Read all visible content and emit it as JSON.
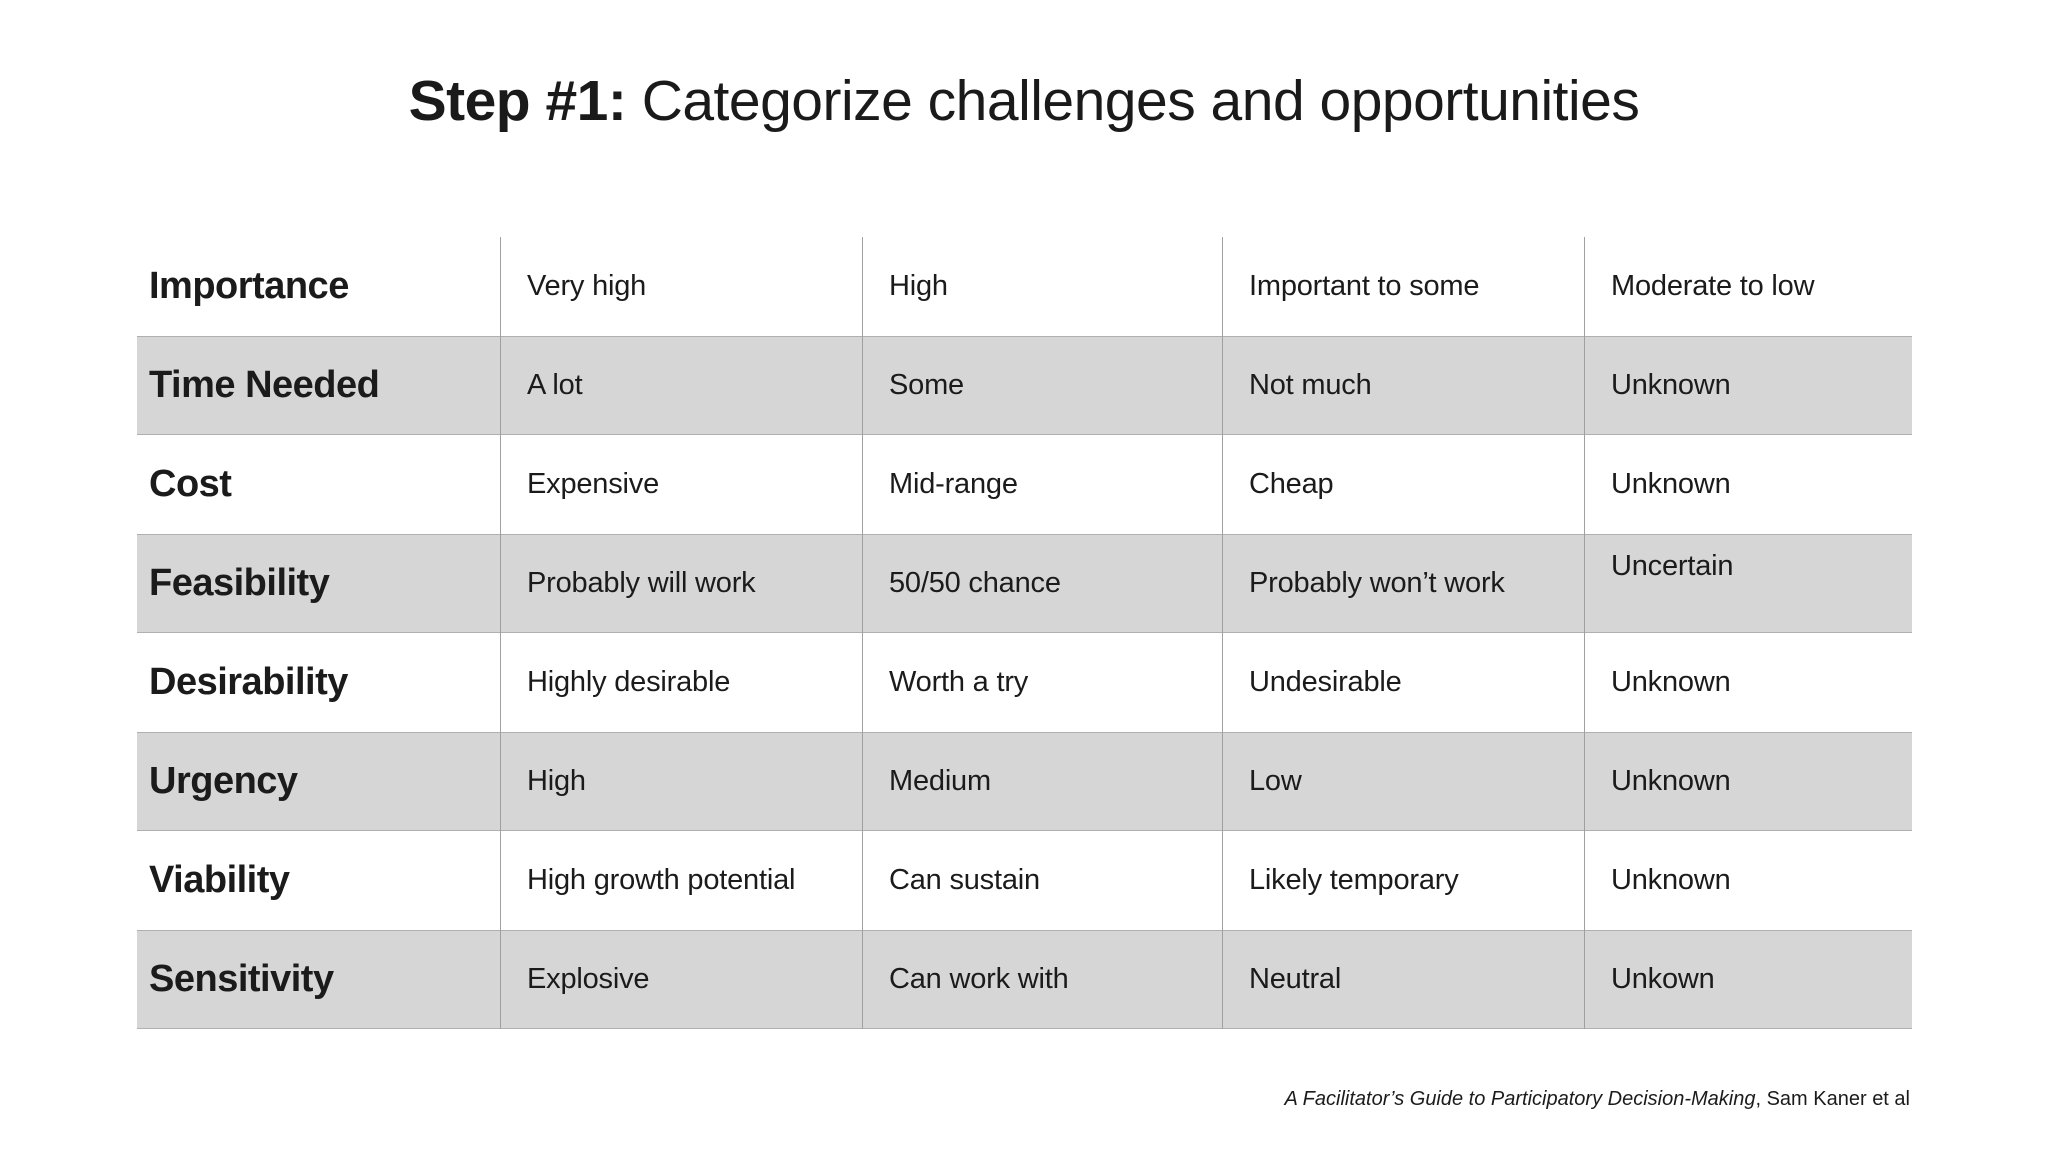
{
  "title": {
    "prefix": "Step #1:",
    "rest": " Categorize challenges and opportunities"
  },
  "table": {
    "rows": [
      {
        "label": "Importance",
        "shaded": false,
        "values": [
          "Very high",
          "High",
          "Important to some",
          "Moderate to low"
        ]
      },
      {
        "label": "Time Needed",
        "shaded": true,
        "values": [
          "A lot",
          "Some",
          "Not much",
          "Unknown"
        ]
      },
      {
        "label": "Cost",
        "shaded": false,
        "values": [
          "Expensive",
          "Mid-range",
          "Cheap",
          "Unknown"
        ]
      },
      {
        "label": "Feasibility",
        "shaded": true,
        "values": [
          "Probably will work",
          "50/50 chance",
          "Probably won’t work",
          "Uncertain"
        ]
      },
      {
        "label": "Desirability",
        "shaded": false,
        "values": [
          "Highly desirable",
          "Worth a try",
          "Undesirable",
          "Unknown"
        ]
      },
      {
        "label": "Urgency",
        "shaded": true,
        "values": [
          "High",
          "Medium",
          "Low",
          "Unknown"
        ]
      },
      {
        "label": "Viability",
        "shaded": false,
        "values": [
          "High growth potential",
          "Can sustain",
          "Likely temporary",
          "Unknown"
        ]
      },
      {
        "label": "Sensitivity",
        "shaded": true,
        "values": [
          "Explosive",
          "Can work with",
          "Neutral",
          "Unkown"
        ]
      }
    ]
  },
  "footer": {
    "source_title": "A Facilitator’s Guide to Participatory Decision-Making",
    "source_suffix": ", Sam Kaner et al"
  },
  "colors": {
    "background": "#ffffff",
    "shaded_row": "#d6d6d6",
    "divider": "#a0a0a0",
    "text": "#1b1b1b"
  }
}
